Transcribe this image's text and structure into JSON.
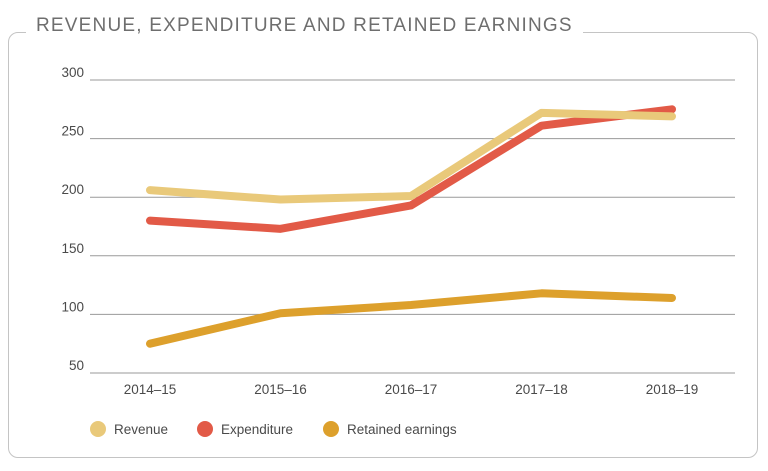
{
  "title": "REVENUE, EXPENDITURE AND RETAINED EARNINGS",
  "chart_data": {
    "type": "line",
    "categories": [
      "2014–15",
      "2015–16",
      "2016–17",
      "2017–18",
      "2018–19"
    ],
    "series": [
      {
        "name": "Revenue",
        "color": "#E9C97A",
        "values": [
          206,
          198,
          201,
          272,
          269
        ]
      },
      {
        "name": "Expenditure",
        "color": "#E25A47",
        "values": [
          180,
          173,
          193,
          261,
          275
        ]
      },
      {
        "name": "Retained earnings",
        "color": "#DDA02C",
        "values": [
          75,
          101,
          108,
          118,
          114
        ]
      }
    ],
    "yticks": [
      50,
      100,
      150,
      200,
      250,
      300
    ],
    "ylim": [
      50,
      300
    ],
    "grid": true,
    "legend": "bottom-left",
    "xlabel": "",
    "ylabel": ""
  }
}
